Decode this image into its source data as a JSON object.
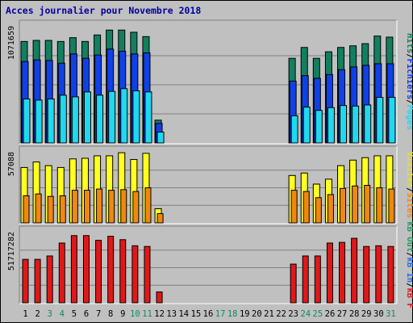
{
  "title": "Acces journalier pour Novembre 2018",
  "colors": {
    "background": "#c0c0c0",
    "title": "#0000a0",
    "hits": "#128060",
    "files": "#1040e8",
    "pages": "#20d8f0",
    "visits": "#ffff20",
    "sites": "#f08810",
    "kb_in": "#2070f0",
    "kb_out": "#20a060",
    "kb": "#e01818",
    "weekend": "#118866",
    "weekday": "#000000"
  },
  "right_labels": {
    "top": [
      {
        "text": "Hits",
        "color": "#128060"
      },
      {
        "text": "/",
        "color": "#000000"
      },
      {
        "text": "Fichiers",
        "color": "#1040e8"
      },
      {
        "text": "/",
        "color": "#000000"
      },
      {
        "text": "Pages",
        "color": "#20d8f0"
      }
    ],
    "middle": [
      {
        "text": "Visites",
        "color": "#e8e020"
      },
      {
        "text": "/",
        "color": "#000000"
      },
      {
        "text": "Sites",
        "color": "#f08810"
      }
    ],
    "bottom": [
      {
        "text": "kB Out",
        "color": "#20a060"
      },
      {
        "text": "/",
        "color": "#000000"
      },
      {
        "text": "kB In",
        "color": "#2070f0"
      },
      {
        "text": "/",
        "color": "#000000"
      },
      {
        "text": "kB F",
        "color": "#e01818"
      }
    ]
  },
  "chart_data": [
    {
      "type": "bar",
      "panel": "hits-files-pages",
      "ylabel": "1071659",
      "ymax": 1071659,
      "categories": [
        "1",
        "2",
        "3",
        "4",
        "5",
        "6",
        "7",
        "8",
        "9",
        "10",
        "11",
        "12",
        "13",
        "14",
        "15",
        "16",
        "17",
        "18",
        "19",
        "20",
        "21",
        "22",
        "23",
        "24",
        "25",
        "26",
        "27",
        "28",
        "29",
        "30",
        "31"
      ],
      "series": [
        {
          "name": "Hits",
          "values": [
            935000,
            945000,
            945000,
            935000,
            970000,
            935000,
            995000,
            1040000,
            1040000,
            1020000,
            980000,
            210000,
            0,
            0,
            0,
            0,
            0,
            0,
            0,
            0,
            0,
            0,
            780000,
            880000,
            780000,
            840000,
            880000,
            895000,
            915000,
            985000,
            975000
          ]
        },
        {
          "name": "Fichiers",
          "values": [
            750000,
            765000,
            760000,
            735000,
            820000,
            780000,
            810000,
            865000,
            845000,
            820000,
            830000,
            180000,
            0,
            0,
            0,
            0,
            0,
            0,
            0,
            0,
            0,
            0,
            570000,
            620000,
            595000,
            630000,
            675000,
            700000,
            715000,
            730000,
            730000
          ]
        },
        {
          "name": "Pages",
          "values": [
            405000,
            395000,
            405000,
            440000,
            425000,
            470000,
            440000,
            475000,
            500000,
            480000,
            470000,
            100000,
            0,
            0,
            0,
            0,
            0,
            0,
            0,
            0,
            0,
            0,
            250000,
            330000,
            300000,
            325000,
            345000,
            340000,
            350000,
            420000,
            420000
          ]
        }
      ]
    },
    {
      "type": "bar",
      "panel": "visits-sites",
      "ylabel": "57088",
      "ymax": 57088,
      "categories": [
        "1",
        "2",
        "3",
        "4",
        "5",
        "6",
        "7",
        "8",
        "9",
        "10",
        "11",
        "12",
        "13",
        "14",
        "15",
        "16",
        "17",
        "18",
        "19",
        "20",
        "21",
        "22",
        "23",
        "24",
        "25",
        "26",
        "27",
        "28",
        "29",
        "30",
        "31"
      ],
      "series": [
        {
          "name": "Visites",
          "values": [
            45000,
            49500,
            46500,
            45000,
            52000,
            52500,
            54500,
            54500,
            57000,
            51500,
            56500,
            11500,
            0,
            0,
            0,
            0,
            0,
            0,
            0,
            0,
            0,
            0,
            38500,
            40500,
            31500,
            35500,
            46500,
            51000,
            53000,
            54500,
            54500
          ]
        },
        {
          "name": "Sites",
          "values": [
            22000,
            23500,
            21500,
            22000,
            26500,
            26500,
            27500,
            26500,
            27000,
            25500,
            28500,
            7500,
            0,
            0,
            0,
            0,
            0,
            0,
            0,
            0,
            0,
            0,
            26500,
            25500,
            20500,
            23000,
            28000,
            30000,
            30500,
            28500,
            27500
          ]
        }
      ]
    },
    {
      "type": "bar",
      "panel": "kb",
      "ylabel": "51717282",
      "ymax": 51717282,
      "categories": [
        "1",
        "2",
        "3",
        "4",
        "5",
        "6",
        "7",
        "8",
        "9",
        "10",
        "11",
        "12",
        "13",
        "14",
        "15",
        "16",
        "17",
        "18",
        "19",
        "20",
        "21",
        "22",
        "23",
        "24",
        "25",
        "26",
        "27",
        "28",
        "29",
        "30",
        "31"
      ],
      "series": [
        {
          "name": "kB F",
          "values": [
            32000000,
            32000000,
            34500000,
            44000000,
            49500000,
            49500000,
            46000000,
            49000000,
            46500000,
            42000000,
            41500000,
            8000000,
            0,
            0,
            0,
            0,
            0,
            0,
            0,
            0,
            0,
            0,
            28500000,
            34500000,
            34500000,
            44000000,
            44500000,
            47500000,
            41500000,
            42000000,
            41500000
          ]
        }
      ]
    }
  ],
  "x_axis": {
    "labels": [
      "1",
      "2",
      "3",
      "4",
      "5",
      "6",
      "7",
      "8",
      "9",
      "10",
      "11",
      "12",
      "13",
      "14",
      "15",
      "16",
      "17",
      "18",
      "19",
      "20",
      "21",
      "22",
      "23",
      "24",
      "25",
      "26",
      "27",
      "28",
      "29",
      "30",
      "31"
    ],
    "weekend": [
      3,
      4,
      10,
      11,
      17,
      18,
      24,
      25,
      31
    ]
  }
}
